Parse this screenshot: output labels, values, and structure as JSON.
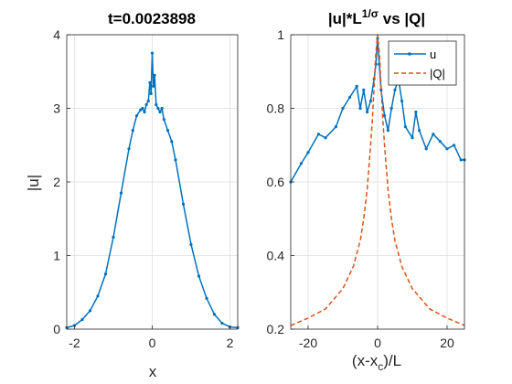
{
  "chart_data": [
    {
      "type": "line",
      "title": "t=0.0023898",
      "xlabel": "x",
      "ylabel": "|u|",
      "xlim": [
        -2.2,
        2.2
      ],
      "ylim": [
        0,
        4
      ],
      "xticks": [
        -2,
        0,
        2
      ],
      "yticks": [
        0,
        1,
        2,
        3,
        4
      ],
      "grid": true,
      "colors": {
        "series": "#0072BD"
      },
      "series": [
        {
          "x": [
            -2.2,
            -2.0,
            -1.8,
            -1.6,
            -1.4,
            -1.2,
            -1.0,
            -0.8,
            -0.6,
            -0.5,
            -0.4,
            -0.3,
            -0.25,
            -0.2,
            -0.15,
            -0.1,
            -0.06,
            -0.03,
            0.0,
            0.03,
            0.06,
            0.1,
            0.15,
            0.2,
            0.25,
            0.3,
            0.4,
            0.5,
            0.6,
            0.8,
            1.0,
            1.2,
            1.4,
            1.6,
            1.8,
            2.0,
            2.2
          ],
          "y": [
            0.02,
            0.05,
            0.13,
            0.25,
            0.45,
            0.75,
            1.25,
            1.85,
            2.45,
            2.7,
            2.9,
            2.98,
            3.0,
            2.95,
            3.05,
            3.1,
            3.35,
            3.2,
            3.75,
            3.3,
            3.45,
            3.05,
            3.0,
            2.95,
            3.0,
            2.85,
            2.7,
            2.55,
            2.3,
            1.7,
            1.15,
            0.72,
            0.42,
            0.2,
            0.08,
            0.03,
            0.02
          ]
        }
      ]
    },
    {
      "type": "line",
      "title": "|u|*L",
      "title_sup": "1/σ",
      "title_tail": " vs |Q|",
      "xlabel": "(x-x",
      "xlabel_sub": "c",
      "xlabel_tail": ")/L",
      "xlim": [
        -25,
        25
      ],
      "ylim": [
        0.2,
        1
      ],
      "xticks": [
        -20,
        0,
        20
      ],
      "yticks": [
        0.2,
        0.4,
        0.6,
        0.8,
        1
      ],
      "ytick_labels": [
        "0.2",
        "0.4",
        "0.6",
        "0.8",
        "1"
      ],
      "grid": true,
      "legend": "top-right",
      "series": [
        {
          "name": "u",
          "color": "#0072BD",
          "style": "solid-marker",
          "x": [
            -25,
            -22,
            -20,
            -17,
            -15,
            -12,
            -10,
            -8,
            -6,
            -5,
            -4,
            -3,
            -2,
            -1,
            -0.5,
            0,
            0.5,
            1,
            2,
            3,
            4,
            5,
            6,
            7,
            8,
            10,
            11,
            12,
            14,
            16,
            18,
            20,
            22,
            24,
            25
          ],
          "y": [
            0.6,
            0.65,
            0.68,
            0.73,
            0.72,
            0.75,
            0.8,
            0.83,
            0.86,
            0.8,
            0.85,
            0.79,
            0.82,
            0.88,
            0.92,
            0.99,
            0.92,
            0.85,
            0.78,
            0.74,
            0.8,
            0.85,
            0.88,
            0.82,
            0.75,
            0.72,
            0.79,
            0.74,
            0.69,
            0.73,
            0.71,
            0.69,
            0.7,
            0.66,
            0.66
          ]
        },
        {
          "name": "|Q|",
          "color": "#D95319",
          "style": "dashed",
          "x": [
            -25,
            -20,
            -15,
            -10,
            -7,
            -5,
            -4,
            -3,
            -2,
            -1.5,
            -1,
            -0.5,
            0,
            0.5,
            1,
            1.5,
            2,
            3,
            4,
            5,
            7,
            10,
            15,
            20,
            25
          ],
          "y": [
            0.21,
            0.23,
            0.255,
            0.31,
            0.37,
            0.44,
            0.5,
            0.58,
            0.7,
            0.77,
            0.86,
            0.95,
            1.0,
            0.95,
            0.86,
            0.77,
            0.7,
            0.58,
            0.5,
            0.44,
            0.37,
            0.31,
            0.255,
            0.23,
            0.21
          ]
        }
      ]
    }
  ]
}
